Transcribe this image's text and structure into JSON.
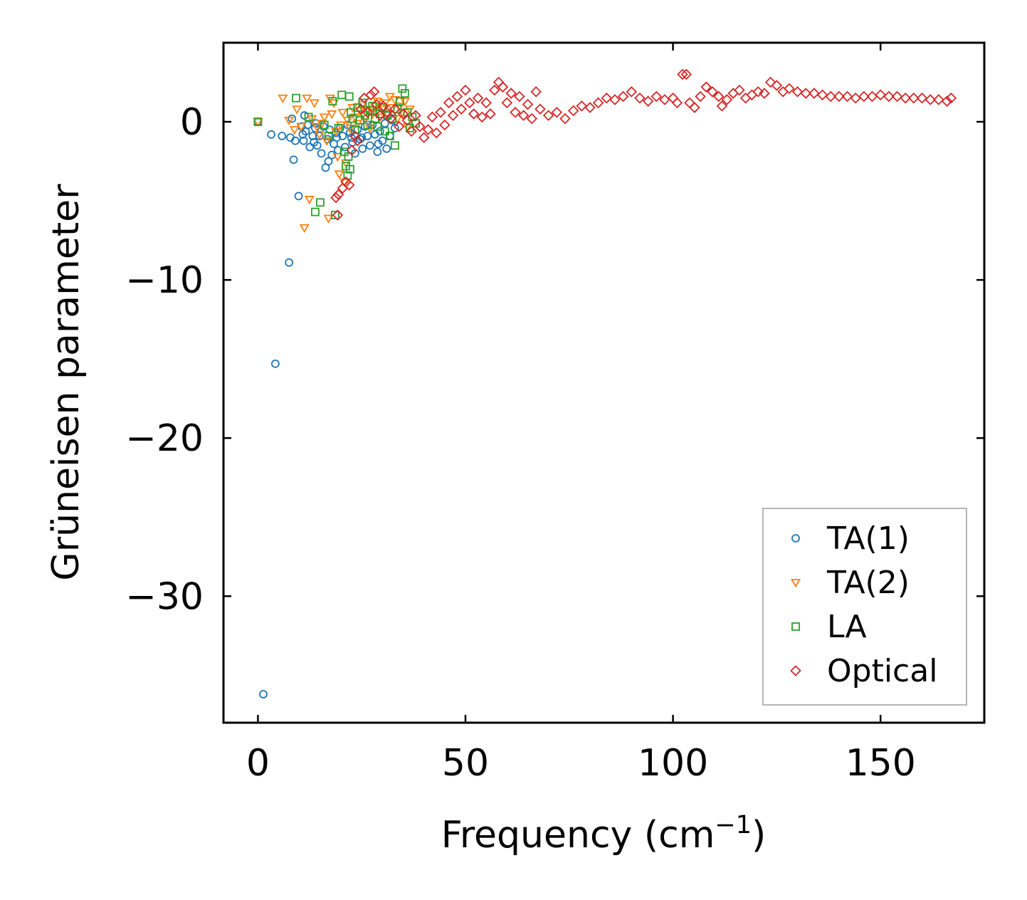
{
  "chart_data": {
    "type": "scatter",
    "title": "",
    "xlabel": "Frequency (cm",
    "xlabel_superscript": "−1",
    "xlabel_suffix": ")",
    "ylabel": "Grüneisen parameter",
    "xlim": [
      -8.3,
      175
    ],
    "ylim": [
      -38.0,
      5.0
    ],
    "xticks": [
      0,
      50,
      100,
      150
    ],
    "xtick_labels": [
      "0",
      "50",
      "100",
      "150"
    ],
    "yticks": [
      0,
      -10,
      -20,
      -30
    ],
    "ytick_labels": [
      "0",
      "−10",
      "−20",
      "−30"
    ],
    "grid": false,
    "legend_position": "lower-right",
    "series": [
      {
        "name": "TA(1)",
        "marker": "circle",
        "color": "#1f77b4",
        "points": [
          [
            0,
            0
          ],
          [
            1.3,
            -36.2
          ],
          [
            3.2,
            -0.8
          ],
          [
            4.2,
            -15.3
          ],
          [
            5.8,
            -0.9
          ],
          [
            7.5,
            -8.9
          ],
          [
            7.8,
            -1.0
          ],
          [
            8.2,
            0.2
          ],
          [
            8.6,
            -2.4
          ],
          [
            9.0,
            -1.2
          ],
          [
            9.8,
            -4.7
          ],
          [
            10.5,
            -0.3
          ],
          [
            11.0,
            -1.2
          ],
          [
            11.5,
            -0.6
          ],
          [
            12.0,
            -0.2
          ],
          [
            12.5,
            -1.6
          ],
          [
            13.2,
            -0.9
          ],
          [
            13.8,
            -0.4
          ],
          [
            14.3,
            -1.5
          ],
          [
            14.8,
            -0.9
          ],
          [
            15.3,
            -2.0
          ],
          [
            15.8,
            -0.3
          ],
          [
            16.3,
            -2.9
          ],
          [
            16.8,
            -1.1
          ],
          [
            17.3,
            -0.5
          ],
          [
            17.8,
            -2.1
          ],
          [
            18.3,
            -1.4
          ],
          [
            18.8,
            -0.7
          ],
          [
            19.3,
            -1.8
          ],
          [
            19.8,
            -0.4
          ],
          [
            20.4,
            -0.9
          ],
          [
            21.0,
            -1.6
          ],
          [
            21.6,
            -0.2
          ],
          [
            22.2,
            -0.7
          ],
          [
            22.8,
            -1.3
          ],
          [
            23.4,
            -2.0
          ],
          [
            24.0,
            -0.5
          ],
          [
            24.6,
            -1.1
          ],
          [
            25.2,
            -1.7
          ],
          [
            25.8,
            -0.3
          ],
          [
            26.4,
            -0.9
          ],
          [
            27.0,
            -1.5
          ],
          [
            27.6,
            -0.2
          ],
          [
            28.2,
            -0.8
          ],
          [
            28.8,
            -1.9
          ],
          [
            29.4,
            -0.6
          ],
          [
            30.0,
            -1.2
          ],
          [
            30.6,
            -0.1
          ],
          [
            31.2,
            0.4
          ],
          [
            31.8,
            -0.9
          ],
          [
            32.4,
            0.1
          ],
          [
            33.0,
            -0.4
          ],
          [
            11.2,
            0.4
          ],
          [
            14.0,
            -0.1
          ],
          [
            19.0,
            -1.0
          ],
          [
            25.0,
            -1.0
          ],
          [
            29.0,
            -1.4
          ],
          [
            31.0,
            -1.7
          ],
          [
            22.5,
            -1.0
          ],
          [
            17.0,
            -2.5
          ],
          [
            13.5,
            -1.3
          ],
          [
            10.8,
            -0.8
          ]
        ]
      },
      {
        "name": "TA(2)",
        "marker": "triangle-down",
        "color": "#ff7f0e",
        "points": [
          [
            0,
            0
          ],
          [
            6.0,
            1.5
          ],
          [
            7.5,
            0.1
          ],
          [
            8.8,
            -0.5
          ],
          [
            9.4,
            0.8
          ],
          [
            10.4,
            -0.3
          ],
          [
            11.2,
            -6.7
          ],
          [
            11.8,
            1.5
          ],
          [
            12.4,
            -4.9
          ],
          [
            13.0,
            0.2
          ],
          [
            13.6,
            1.2
          ],
          [
            14.2,
            -0.3
          ],
          [
            14.8,
            -0.8
          ],
          [
            15.4,
            -0.1
          ],
          [
            16.0,
            0.3
          ],
          [
            16.6,
            -1.2
          ],
          [
            17.0,
            -6.1
          ],
          [
            17.4,
            1.5
          ],
          [
            17.8,
            0.5
          ],
          [
            18.3,
            1.2
          ],
          [
            18.8,
            -0.6
          ],
          [
            19.2,
            -2.2
          ],
          [
            19.6,
            -3.3
          ],
          [
            20.0,
            -0.2
          ],
          [
            20.4,
            0.6
          ],
          [
            20.8,
            -3.8
          ],
          [
            21.2,
            -2.6
          ],
          [
            21.6,
            0.1
          ],
          [
            22.2,
            -0.4
          ],
          [
            22.8,
            0.9
          ],
          [
            23.4,
            0.3
          ],
          [
            24.0,
            -0.1
          ],
          [
            24.6,
            0.7
          ],
          [
            25.2,
            1.1
          ],
          [
            25.8,
            0.2
          ],
          [
            26.4,
            0.8
          ],
          [
            27.0,
            -0.4
          ],
          [
            27.6,
            0.5
          ],
          [
            28.2,
            1.0
          ],
          [
            28.8,
            1.3
          ],
          [
            29.4,
            0.3
          ],
          [
            30.0,
            0.8
          ],
          [
            30.6,
            1.2
          ],
          [
            31.2,
            0.5
          ],
          [
            31.8,
            1.6
          ],
          [
            32.4,
            0.9
          ],
          [
            33.0,
            1.4
          ],
          [
            33.6,
            0.2
          ],
          [
            34.2,
            1.0
          ],
          [
            34.8,
            0.6
          ],
          [
            35.4,
            1.3
          ],
          [
            36.0,
            -0.3
          ],
          [
            36.6,
            0.8
          ]
        ]
      },
      {
        "name": "LA",
        "marker": "square",
        "color": "#2ca02c",
        "points": [
          [
            0,
            0
          ],
          [
            9.2,
            1.5
          ],
          [
            12.2,
            0.3
          ],
          [
            13.8,
            -5.7
          ],
          [
            15.0,
            -5.1
          ],
          [
            16.0,
            -0.2
          ],
          [
            17.0,
            -0.9
          ],
          [
            18.0,
            1.3
          ],
          [
            18.6,
            -5.9
          ],
          [
            19.4,
            -0.4
          ],
          [
            20.2,
            1.7
          ],
          [
            20.8,
            -1.9
          ],
          [
            21.2,
            -2.8
          ],
          [
            21.6,
            -3.4
          ],
          [
            22.0,
            1.6
          ],
          [
            22.4,
            0.6
          ],
          [
            22.8,
            0.2
          ],
          [
            23.4,
            -0.5
          ],
          [
            24.0,
            0.9
          ],
          [
            24.6,
            0.1
          ],
          [
            25.2,
            1.2
          ],
          [
            25.8,
            0.4
          ],
          [
            26.4,
            -0.2
          ],
          [
            27.0,
            0.7
          ],
          [
            27.6,
            1.0
          ],
          [
            28.2,
            0.2
          ],
          [
            28.8,
            -0.3
          ],
          [
            29.4,
            0.5
          ],
          [
            30.0,
            0.9
          ],
          [
            30.6,
            -0.6
          ],
          [
            31.2,
            0.4
          ],
          [
            31.8,
            -0.9
          ],
          [
            32.4,
            0.2
          ],
          [
            33.0,
            -1.5
          ],
          [
            33.6,
            0.8
          ],
          [
            34.2,
            1.3
          ],
          [
            34.8,
            2.1
          ],
          [
            35.4,
            1.8
          ],
          [
            36.0,
            0.6
          ],
          [
            36.6,
            -0.4
          ],
          [
            37.2,
            0.3
          ],
          [
            38.0,
            -0.1
          ],
          [
            21.8,
            -2.2
          ],
          [
            22.2,
            -3.0
          ]
        ]
      },
      {
        "name": "Optical",
        "marker": "diamond",
        "color": "#d62728",
        "points": [
          [
            18.8,
            -4.8
          ],
          [
            19.4,
            -4.6
          ],
          [
            19.2,
            -5.9
          ],
          [
            20.4,
            -4.2
          ],
          [
            21.2,
            -3.8
          ],
          [
            22.0,
            -4.0
          ],
          [
            22.6,
            -1.8
          ],
          [
            23.4,
            -0.9
          ],
          [
            24.0,
            -1.2
          ],
          [
            24.8,
            0.8
          ],
          [
            25.6,
            1.5
          ],
          [
            26.4,
            0.6
          ],
          [
            27.2,
            1.7
          ],
          [
            28.0,
            1.9
          ],
          [
            28.6,
            1.1
          ],
          [
            29.4,
            0.4
          ],
          [
            30.2,
            1.0
          ],
          [
            31.0,
            0.6
          ],
          [
            32.0,
            0.2
          ],
          [
            33.0,
            0.8
          ],
          [
            34.0,
            -0.3
          ],
          [
            35.0,
            0.5
          ],
          [
            36.0,
            0.1
          ],
          [
            37.0,
            -0.6
          ],
          [
            38.0,
            0.4
          ],
          [
            39.0,
            -0.3
          ],
          [
            40.0,
            -1.0
          ],
          [
            41.0,
            -0.5
          ],
          [
            42.0,
            0.3
          ],
          [
            43.0,
            -0.7
          ],
          [
            44.0,
            0.6
          ],
          [
            45.0,
            -0.2
          ],
          [
            46.0,
            1.2
          ],
          [
            47.0,
            0.4
          ],
          [
            48.0,
            1.6
          ],
          [
            49.0,
            0.8
          ],
          [
            50.0,
            2.0
          ],
          [
            51.0,
            1.2
          ],
          [
            52.0,
            0.5
          ],
          [
            53.0,
            1.5
          ],
          [
            54.0,
            0.3
          ],
          [
            55.0,
            1.2
          ],
          [
            56.0,
            0.5
          ],
          [
            57.0,
            2.0
          ],
          [
            58.0,
            2.5
          ],
          [
            59.0,
            2.2
          ],
          [
            60.0,
            1.2
          ],
          [
            61.0,
            1.8
          ],
          [
            62.0,
            0.6
          ],
          [
            63.0,
            1.6
          ],
          [
            64.0,
            0.4
          ],
          [
            65.0,
            1.1
          ],
          [
            66.0,
            0.2
          ],
          [
            67.0,
            1.9
          ],
          [
            68.0,
            0.8
          ],
          [
            70.0,
            0.4
          ],
          [
            72.0,
            0.6
          ],
          [
            74.0,
            0.2
          ],
          [
            76.0,
            0.7
          ],
          [
            78.0,
            1.0
          ],
          [
            80.0,
            0.9
          ],
          [
            82.0,
            1.2
          ],
          [
            84.0,
            1.5
          ],
          [
            86.0,
            1.4
          ],
          [
            88.0,
            1.6
          ],
          [
            90.0,
            1.9
          ],
          [
            92.0,
            1.5
          ],
          [
            94.0,
            1.3
          ],
          [
            96.0,
            1.6
          ],
          [
            98.0,
            1.4
          ],
          [
            100.0,
            1.5
          ],
          [
            101.0,
            1.2
          ],
          [
            102.3,
            3.0
          ],
          [
            103.2,
            3.0
          ],
          [
            104.0,
            1.2
          ],
          [
            105.2,
            0.9
          ],
          [
            106.6,
            1.6
          ],
          [
            108.0,
            2.2
          ],
          [
            109.5,
            1.9
          ],
          [
            111.0,
            1.6
          ],
          [
            111.8,
            1.0
          ],
          [
            113.0,
            1.4
          ],
          [
            114.5,
            1.8
          ],
          [
            116.0,
            2.0
          ],
          [
            117.5,
            1.5
          ],
          [
            119.0,
            1.7
          ],
          [
            120.5,
            1.9
          ],
          [
            122.0,
            1.8
          ],
          [
            123.5,
            2.5
          ],
          [
            125.0,
            2.3
          ],
          [
            126.5,
            1.9
          ],
          [
            128.0,
            2.1
          ],
          [
            130.0,
            1.9
          ],
          [
            132.0,
            1.8
          ],
          [
            134.0,
            1.8
          ],
          [
            136.0,
            1.7
          ],
          [
            138.0,
            1.6
          ],
          [
            140.0,
            1.6
          ],
          [
            142.0,
            1.6
          ],
          [
            144.0,
            1.5
          ],
          [
            146.0,
            1.6
          ],
          [
            148.0,
            1.6
          ],
          [
            150.0,
            1.7
          ],
          [
            152.0,
            1.6
          ],
          [
            154.0,
            1.6
          ],
          [
            156.0,
            1.5
          ],
          [
            158.0,
            1.5
          ],
          [
            160.0,
            1.5
          ],
          [
            162.0,
            1.4
          ],
          [
            164.0,
            1.4
          ],
          [
            166.0,
            1.3
          ],
          [
            167.0,
            1.5
          ]
        ]
      }
    ]
  }
}
